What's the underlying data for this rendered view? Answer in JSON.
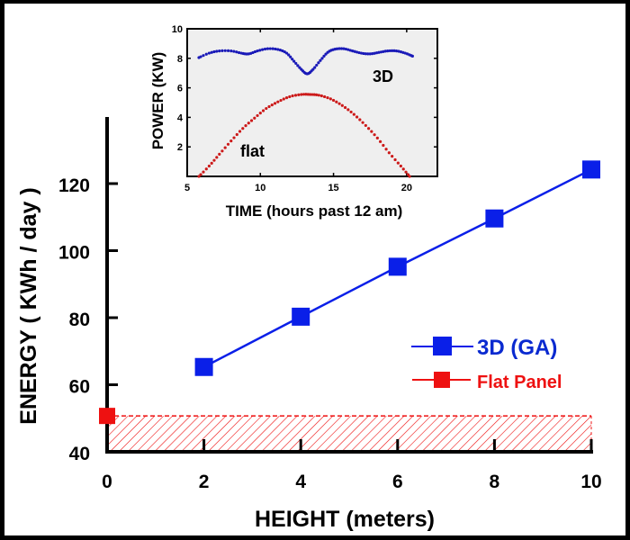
{
  "chart_data": [
    {
      "id": "main",
      "type": "line",
      "title": "",
      "xlabel": "HEIGHT (meters)",
      "ylabel": "ENERGY ( KWh / day )",
      "xlim": [
        0,
        10
      ],
      "ylim": [
        40,
        130
      ],
      "xticks": [
        0,
        2,
        4,
        6,
        8,
        10
      ],
      "xtick_labels": [
        "0",
        "2",
        "4",
        "6",
        "8",
        "10"
      ],
      "yticks": [
        40,
        60,
        80,
        100,
        120
      ],
      "ytick_labels": [
        "40",
        "60",
        "80",
        "100",
        "120"
      ],
      "grid": false,
      "legend_position": "right",
      "series": [
        {
          "name": "3D (GA)",
          "color": "#0a1fe8",
          "marker": "square",
          "x": [
            2,
            4,
            6,
            8,
            10
          ],
          "y": [
            65.3,
            80.3,
            95.2,
            109.6,
            124.2
          ]
        },
        {
          "name": "Flat Panel",
          "color": "#ee1111",
          "marker": "square",
          "x": [
            0
          ],
          "y": [
            50.7
          ],
          "band": {
            "from": 40,
            "to": 50.7,
            "x_from": 0,
            "x_to": 10,
            "style": "hatched"
          }
        }
      ]
    },
    {
      "id": "inset",
      "type": "line",
      "title": "",
      "xlabel": "TIME (hours past 12 am)",
      "ylabel": "POWER (KW)",
      "xlim": [
        5,
        22.1
      ],
      "ylim": [
        0,
        10
      ],
      "xticks": [
        5,
        10,
        15,
        20
      ],
      "xtick_labels": [
        "5",
        "10",
        "15",
        "20"
      ],
      "yticks": [
        2,
        4,
        6,
        8,
        10
      ],
      "ytick_labels": [
        "2",
        "4",
        "6",
        "8",
        "10"
      ],
      "background": "#efefef",
      "grid": false,
      "series": [
        {
          "name": "3D",
          "label": "3D",
          "color": "#1a1ab8",
          "style": "dotted",
          "x": [
            5.8,
            6.5,
            7.2,
            8.0,
            8.7,
            9.2,
            9.8,
            10.5,
            11.2,
            11.8,
            12.3,
            12.8,
            13.2,
            13.6,
            14.1,
            14.6,
            15.1,
            15.7,
            16.3,
            16.9,
            17.5,
            18.1,
            18.7,
            19.3,
            19.9,
            20.4
          ],
          "y": [
            8.05,
            8.35,
            8.5,
            8.5,
            8.35,
            8.3,
            8.5,
            8.65,
            8.6,
            8.35,
            7.8,
            7.25,
            6.95,
            7.25,
            7.85,
            8.4,
            8.62,
            8.65,
            8.5,
            8.35,
            8.3,
            8.4,
            8.5,
            8.5,
            8.35,
            8.15
          ]
        },
        {
          "name": "flat",
          "label": "flat",
          "color": "#cc1a1a",
          "style": "dotted",
          "x": [
            5.8,
            6.5,
            7.2,
            8.0,
            8.8,
            9.6,
            10.4,
            11.2,
            12.0,
            12.8,
            13.4,
            14.0,
            14.8,
            15.6,
            16.4,
            17.2,
            18.0,
            18.8,
            19.6,
            20.2
          ],
          "y": [
            0.0,
            0.7,
            1.5,
            2.4,
            3.25,
            3.95,
            4.6,
            5.05,
            5.4,
            5.55,
            5.55,
            5.5,
            5.25,
            4.8,
            4.2,
            3.45,
            2.6,
            1.6,
            0.7,
            0.0
          ]
        }
      ],
      "annotations": [
        "3D",
        "flat"
      ]
    }
  ],
  "legend": {
    "items": [
      {
        "label": "3D (GA)",
        "color": "#0a1fe8"
      },
      {
        "label": "Flat Panel",
        "color": "#ee1111"
      }
    ]
  }
}
